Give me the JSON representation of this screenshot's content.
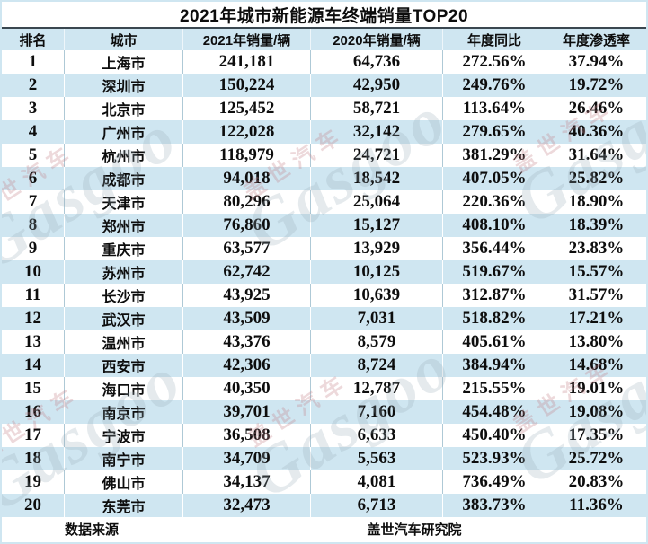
{
  "title": "2021年城市新能源车终端销量TOP20",
  "columns": [
    "排名",
    "城市",
    "2021年销量/辆",
    "2020年销量/辆",
    "年度同比",
    "年度渗透率"
  ],
  "rows": [
    [
      "1",
      "上海市",
      "241,181",
      "64,736",
      "272.56%",
      "37.94%"
    ],
    [
      "2",
      "深圳市",
      "150,224",
      "42,950",
      "249.76%",
      "19.72%"
    ],
    [
      "3",
      "北京市",
      "125,452",
      "58,721",
      "113.64%",
      "26.46%"
    ],
    [
      "4",
      "广州市",
      "122,028",
      "32,142",
      "279.65%",
      "40.36%"
    ],
    [
      "5",
      "杭州市",
      "118,979",
      "24,721",
      "381.29%",
      "31.64%"
    ],
    [
      "6",
      "成都市",
      "94,018",
      "18,542",
      "407.05%",
      "25.82%"
    ],
    [
      "7",
      "天津市",
      "80,296",
      "25,064",
      "220.36%",
      "18.90%"
    ],
    [
      "8",
      "郑州市",
      "76,860",
      "15,127",
      "408.10%",
      "18.39%"
    ],
    [
      "9",
      "重庆市",
      "63,577",
      "13,929",
      "356.44%",
      "23.83%"
    ],
    [
      "10",
      "苏州市",
      "62,742",
      "10,125",
      "519.67%",
      "15.57%"
    ],
    [
      "11",
      "长沙市",
      "43,925",
      "10,639",
      "312.87%",
      "31.57%"
    ],
    [
      "12",
      "武汉市",
      "43,509",
      "7,031",
      "518.82%",
      "17.21%"
    ],
    [
      "13",
      "温州市",
      "43,376",
      "8,579",
      "405.61%",
      "13.80%"
    ],
    [
      "14",
      "西安市",
      "42,306",
      "8,724",
      "384.94%",
      "14.68%"
    ],
    [
      "15",
      "海口市",
      "40,350",
      "12,787",
      "215.55%",
      "19.01%"
    ],
    [
      "16",
      "南京市",
      "39,701",
      "7,160",
      "454.48%",
      "19.08%"
    ],
    [
      "17",
      "宁波市",
      "36,508",
      "6,633",
      "450.40%",
      "17.35%"
    ],
    [
      "18",
      "南宁市",
      "34,709",
      "5,563",
      "523.93%",
      "25.72%"
    ],
    [
      "19",
      "佛山市",
      "34,137",
      "4,081",
      "736.49%",
      "20.83%"
    ],
    [
      "20",
      "东莞市",
      "32,473",
      "6,713",
      "383.73%",
      "11.36%"
    ]
  ],
  "footer": {
    "source_label": "数据来源",
    "source_value": "盖世汽车研究院"
  },
  "watermark": {
    "cn": "盖世汽车",
    "en": "Gasgoo"
  },
  "colors": {
    "band": "#cfe6f1",
    "outer_border": "#cfe6f1",
    "title_rule": "#3a4750",
    "divider_white_row": "#aec9d6",
    "divider_band_row": "#ffffff",
    "text": "#0d0d0d"
  }
}
